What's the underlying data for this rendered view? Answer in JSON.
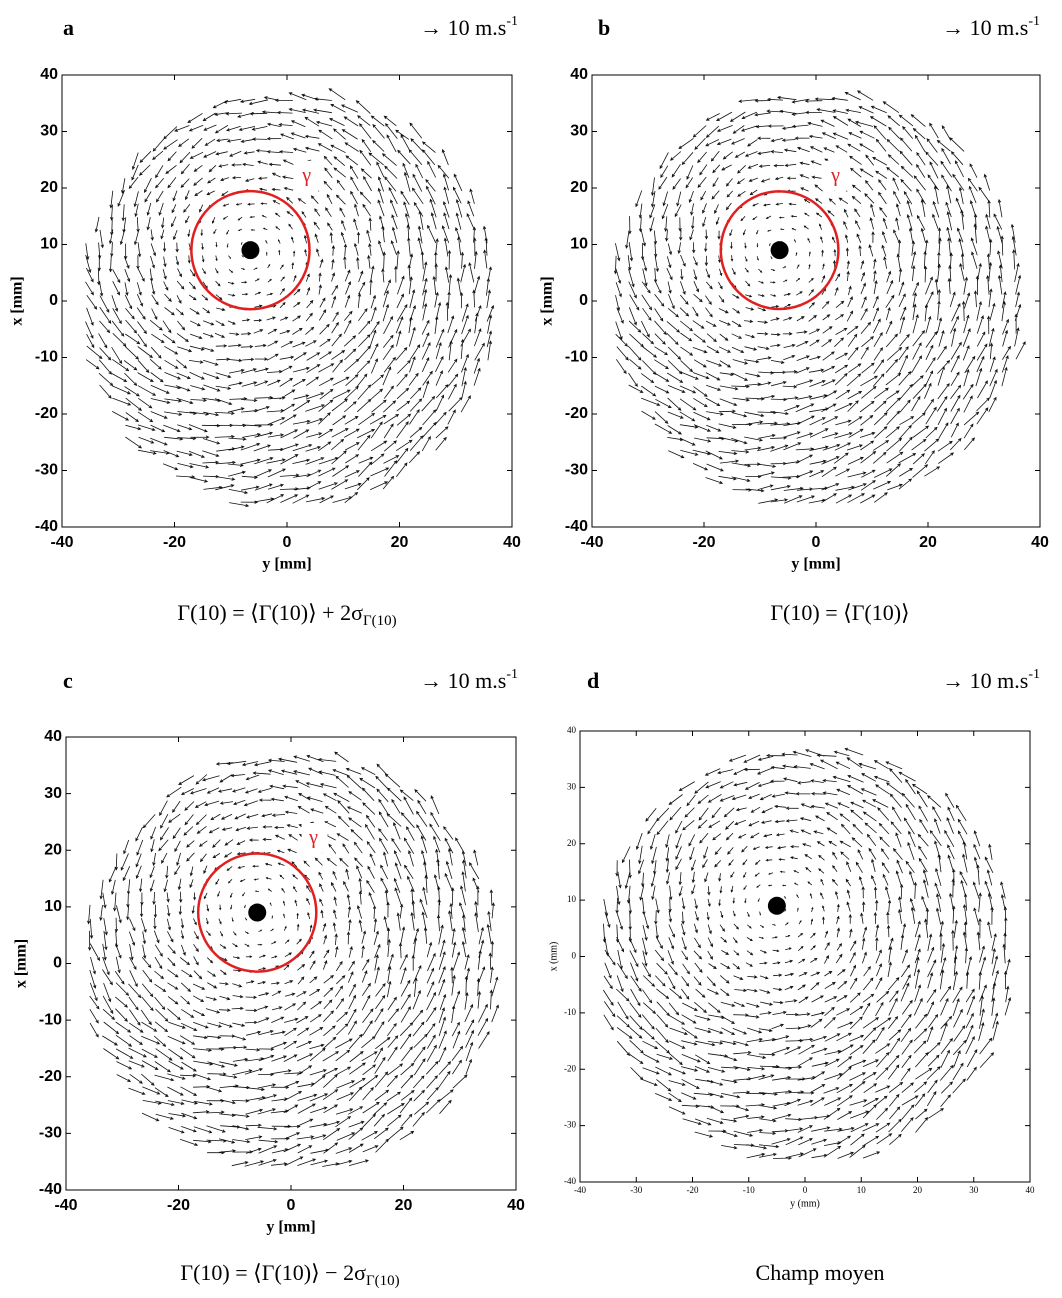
{
  "chart_data": [
    {
      "type": "quiver",
      "panel_label": "a",
      "scale_label": "→ 10 m.s",
      "scale_exponent": "-1",
      "xlabel": "y [mm]",
      "ylabel": "x [mm]",
      "xlim": [
        -40,
        40
      ],
      "ylim": [
        -40,
        40
      ],
      "xticks": [
        -40,
        -20,
        0,
        20,
        40
      ],
      "yticks": [
        -40,
        -30,
        -20,
        -10,
        0,
        10,
        20,
        30,
        40
      ],
      "center": [
        -6.5,
        9
      ],
      "circle_radius": 10.5,
      "circle_label": "γ",
      "circle_color": "#e02020",
      "caption": "Γ(10) = ⟨Γ(10)⟩ + 2σ",
      "caption_subscript": "Γ(10)"
    },
    {
      "type": "quiver",
      "panel_label": "b",
      "scale_label": "→ 10 m.s",
      "scale_exponent": "-1",
      "xlabel": "y [mm]",
      "ylabel": "x [mm]",
      "xlim": [
        -40,
        40
      ],
      "ylim": [
        -40,
        40
      ],
      "xticks": [
        -40,
        -20,
        0,
        20,
        40
      ],
      "yticks": [
        -40,
        -30,
        -20,
        -10,
        0,
        10,
        20,
        30,
        40
      ],
      "center": [
        -6.5,
        9
      ],
      "circle_radius": 10.5,
      "circle_label": "γ",
      "circle_color": "#e02020",
      "caption": "Γ(10) = ⟨Γ(10)⟩"
    },
    {
      "type": "quiver",
      "panel_label": "c",
      "scale_label": "→ 10 m.s",
      "scale_exponent": "-1",
      "xlabel": "y [mm]",
      "ylabel": "x [mm]",
      "xlim": [
        -40,
        40
      ],
      "ylim": [
        -40,
        40
      ],
      "xticks": [
        -40,
        -20,
        0,
        20,
        40
      ],
      "yticks": [
        -40,
        -30,
        -20,
        -10,
        0,
        10,
        20,
        30,
        40
      ],
      "center": [
        -6,
        9
      ],
      "circle_radius": 10.5,
      "circle_label": "γ",
      "circle_color": "#e02020",
      "caption": "Γ(10) = ⟨Γ(10)⟩ − 2σ",
      "caption_subscript": "Γ(10)"
    },
    {
      "type": "quiver",
      "panel_label": "d",
      "scale_label": "→ 10 m.s",
      "scale_exponent": "-1",
      "xlabel": "y (mm)",
      "ylabel": "x (mm)",
      "xlim": [
        -40,
        40
      ],
      "ylim": [
        -40,
        40
      ],
      "xticks": [
        -40,
        -30,
        -20,
        -10,
        0,
        10,
        20,
        30,
        40
      ],
      "yticks": [
        -40,
        -30,
        -20,
        -10,
        0,
        10,
        20,
        30,
        40
      ],
      "center": [
        -5,
        9
      ],
      "caption": "Champ moyen"
    }
  ]
}
